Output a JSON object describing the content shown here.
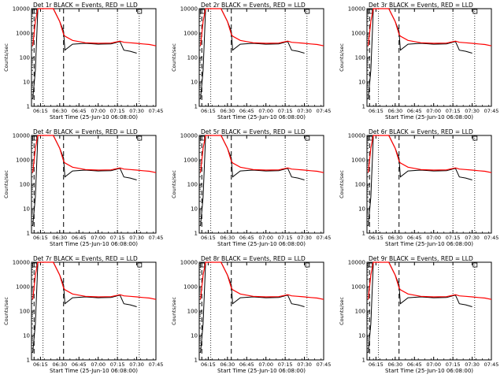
{
  "layout": {
    "rows": 3,
    "cols": 3
  },
  "shared_axes": {
    "ylabel": "Counts/sec",
    "xlabel": "Start Time (25-Jun-10 06:08:00)",
    "y_log_scale": true,
    "ylim": [
      1,
      10000
    ],
    "y_tick_labels": [
      "1",
      "10",
      "100",
      "1000",
      "10000"
    ],
    "xlim_minutes_since_0600": [
      8,
      105
    ],
    "x_tick_labels": [
      "06:15",
      "06:30",
      "06:45",
      "07:00",
      "07:15",
      "07:30",
      "07:45"
    ]
  },
  "colors": {
    "events": "#000000",
    "lld": "#ff0000"
  },
  "chart_data": [
    {
      "type": "line",
      "title": "Det 1r BLACK = Events, RED = LLD",
      "x": [
        "06:09",
        "06:11",
        "06:13",
        "06:16",
        "06:20",
        "06:25",
        "06:30",
        "06:33",
        "06:34",
        "06:40",
        "06:50",
        "07:00",
        "07:10",
        "07:17",
        "07:20",
        "07:25",
        "07:30",
        "07:35",
        "07:40",
        "07:45"
      ],
      "series": [
        {
          "name": "Events",
          "values": [
            2,
            30,
            10000,
            10000,
            10000,
            10000,
            3000,
            1200,
            200,
            350,
            380,
            350,
            360,
            450,
            200,
            180,
            150,
            null,
            null,
            null
          ]
        },
        {
          "name": "LLD",
          "values": [
            300,
            3000,
            10000,
            10000,
            10000,
            10000,
            3000,
            900,
            750,
            500,
            400,
            380,
            390,
            470,
            420,
            400,
            380,
            360,
            340,
            300
          ]
        }
      ],
      "dashed_vline_times": [
        "06:10",
        "06:33"
      ],
      "dotted_vline_times": [
        "06:17",
        "07:15",
        "07:32"
      ]
    },
    {
      "type": "line",
      "title": "Det 2r BLACK = Events, RED = LLD",
      "x": [
        "06:09",
        "06:11",
        "06:13",
        "06:16",
        "06:20",
        "06:25",
        "06:30",
        "06:33",
        "06:34",
        "06:40",
        "06:50",
        "07:00",
        "07:10",
        "07:17",
        "07:20",
        "07:25",
        "07:30",
        "07:35",
        "07:40",
        "07:45"
      ],
      "series": [
        {
          "name": "Events",
          "values": [
            2,
            30,
            10000,
            10000,
            10000,
            10000,
            3000,
            1200,
            200,
            350,
            380,
            350,
            360,
            450,
            200,
            180,
            150,
            null,
            null,
            null
          ]
        },
        {
          "name": "LLD",
          "values": [
            300,
            3000,
            10000,
            10000,
            10000,
            10000,
            3000,
            900,
            750,
            500,
            400,
            380,
            390,
            470,
            420,
            400,
            380,
            360,
            340,
            300
          ]
        }
      ],
      "dashed_vline_times": [
        "06:10",
        "06:33"
      ],
      "dotted_vline_times": [
        "06:17",
        "07:15",
        "07:32"
      ]
    },
    {
      "type": "line",
      "title": "Det 3r BLACK = Events, RED = LLD",
      "x": [
        "06:09",
        "06:11",
        "06:13",
        "06:16",
        "06:20",
        "06:25",
        "06:30",
        "06:33",
        "06:34",
        "06:40",
        "06:50",
        "07:00",
        "07:10",
        "07:17",
        "07:20",
        "07:25",
        "07:30",
        "07:35",
        "07:40",
        "07:45"
      ],
      "series": [
        {
          "name": "Events",
          "values": [
            2,
            30,
            10000,
            10000,
            10000,
            10000,
            3000,
            1200,
            200,
            350,
            380,
            350,
            360,
            450,
            200,
            180,
            150,
            null,
            null,
            null
          ]
        },
        {
          "name": "LLD",
          "values": [
            300,
            3000,
            10000,
            10000,
            10000,
            10000,
            3000,
            900,
            750,
            500,
            400,
            380,
            390,
            470,
            420,
            400,
            380,
            360,
            340,
            300
          ]
        }
      ],
      "dashed_vline_times": [
        "06:10",
        "06:33"
      ],
      "dotted_vline_times": [
        "06:17",
        "07:15",
        "07:32"
      ]
    },
    {
      "type": "line",
      "title": "Det 4r BLACK = Events, RED = LLD",
      "x": [
        "06:09",
        "06:11",
        "06:13",
        "06:16",
        "06:20",
        "06:25",
        "06:30",
        "06:33",
        "06:34",
        "06:40",
        "06:50",
        "07:00",
        "07:10",
        "07:17",
        "07:20",
        "07:25",
        "07:30",
        "07:35",
        "07:40",
        "07:45"
      ],
      "series": [
        {
          "name": "Events",
          "values": [
            2,
            30,
            10000,
            10000,
            10000,
            10000,
            3000,
            1200,
            200,
            350,
            380,
            350,
            360,
            450,
            200,
            180,
            150,
            null,
            null,
            null
          ]
        },
        {
          "name": "LLD",
          "values": [
            300,
            3000,
            10000,
            10000,
            10000,
            10000,
            3000,
            900,
            750,
            500,
            400,
            380,
            390,
            470,
            420,
            400,
            380,
            360,
            340,
            300
          ]
        }
      ],
      "dashed_vline_times": [
        "06:10",
        "06:33"
      ],
      "dotted_vline_times": [
        "06:17",
        "07:15",
        "07:32"
      ]
    },
    {
      "type": "line",
      "title": "Det 5r BLACK = Events, RED = LLD",
      "x": [
        "06:09",
        "06:11",
        "06:13",
        "06:16",
        "06:20",
        "06:25",
        "06:30",
        "06:33",
        "06:34",
        "06:40",
        "06:50",
        "07:00",
        "07:10",
        "07:17",
        "07:20",
        "07:25",
        "07:30",
        "07:35",
        "07:40",
        "07:45"
      ],
      "series": [
        {
          "name": "Events",
          "values": [
            2,
            30,
            10000,
            10000,
            10000,
            10000,
            3000,
            1200,
            200,
            350,
            380,
            350,
            360,
            450,
            200,
            180,
            150,
            null,
            null,
            null
          ]
        },
        {
          "name": "LLD",
          "values": [
            300,
            3000,
            10000,
            10000,
            10000,
            10000,
            3000,
            900,
            750,
            500,
            400,
            380,
            390,
            470,
            420,
            400,
            380,
            360,
            340,
            300
          ]
        }
      ],
      "dashed_vline_times": [
        "06:10",
        "06:33"
      ],
      "dotted_vline_times": [
        "06:17",
        "07:15",
        "07:32"
      ]
    },
    {
      "type": "line",
      "title": "Det 6r BLACK = Events, RED = LLD",
      "x": [
        "06:09",
        "06:11",
        "06:13",
        "06:16",
        "06:20",
        "06:25",
        "06:30",
        "06:33",
        "06:34",
        "06:40",
        "06:50",
        "07:00",
        "07:10",
        "07:17",
        "07:20",
        "07:25",
        "07:30",
        "07:35",
        "07:40",
        "07:45"
      ],
      "series": [
        {
          "name": "Events",
          "values": [
            2,
            30,
            10000,
            10000,
            10000,
            10000,
            3000,
            1200,
            200,
            350,
            380,
            350,
            360,
            450,
            200,
            180,
            150,
            null,
            null,
            null
          ]
        },
        {
          "name": "LLD",
          "values": [
            300,
            3000,
            10000,
            10000,
            10000,
            10000,
            3000,
            900,
            750,
            500,
            400,
            380,
            390,
            470,
            420,
            400,
            380,
            360,
            340,
            300
          ]
        }
      ],
      "dashed_vline_times": [
        "06:10",
        "06:33"
      ],
      "dotted_vline_times": [
        "06:17",
        "07:15",
        "07:32"
      ]
    },
    {
      "type": "line",
      "title": "Det 7r BLACK = Events, RED = LLD",
      "x": [
        "06:09",
        "06:11",
        "06:13",
        "06:16",
        "06:20",
        "06:25",
        "06:30",
        "06:33",
        "06:34",
        "06:40",
        "06:50",
        "07:00",
        "07:10",
        "07:17",
        "07:20",
        "07:25",
        "07:30",
        "07:35",
        "07:40",
        "07:45"
      ],
      "series": [
        {
          "name": "Events",
          "values": [
            2,
            30,
            10000,
            10000,
            10000,
            10000,
            3000,
            1200,
            200,
            350,
            380,
            350,
            360,
            450,
            200,
            180,
            150,
            null,
            null,
            null
          ]
        },
        {
          "name": "LLD",
          "values": [
            300,
            3000,
            10000,
            10000,
            10000,
            10000,
            3000,
            900,
            750,
            500,
            400,
            380,
            390,
            470,
            420,
            400,
            380,
            360,
            340,
            300
          ]
        }
      ],
      "dashed_vline_times": [
        "06:10",
        "06:33"
      ],
      "dotted_vline_times": [
        "06:17",
        "07:15",
        "07:32"
      ]
    },
    {
      "type": "line",
      "title": "Det 8r BLACK = Events, RED = LLD",
      "x": [
        "06:09",
        "06:11",
        "06:13",
        "06:16",
        "06:20",
        "06:25",
        "06:30",
        "06:33",
        "06:34",
        "06:40",
        "06:50",
        "07:00",
        "07:10",
        "07:17",
        "07:20",
        "07:25",
        "07:30",
        "07:35",
        "07:40",
        "07:45"
      ],
      "series": [
        {
          "name": "Events",
          "values": [
            2,
            30,
            10000,
            10000,
            10000,
            10000,
            3000,
            1200,
            200,
            350,
            380,
            350,
            360,
            450,
            200,
            180,
            150,
            null,
            null,
            null
          ]
        },
        {
          "name": "LLD",
          "values": [
            300,
            3000,
            10000,
            10000,
            10000,
            10000,
            3000,
            900,
            750,
            500,
            400,
            380,
            390,
            470,
            420,
            400,
            380,
            360,
            340,
            300
          ]
        }
      ],
      "dashed_vline_times": [
        "06:10",
        "06:33"
      ],
      "dotted_vline_times": [
        "06:17",
        "07:15",
        "07:32"
      ]
    },
    {
      "type": "line",
      "title": "Det 9r BLACK = Events, RED = LLD",
      "x": [
        "06:09",
        "06:11",
        "06:13",
        "06:16",
        "06:20",
        "06:25",
        "06:30",
        "06:33",
        "06:34",
        "06:40",
        "06:50",
        "07:00",
        "07:10",
        "07:17",
        "07:20",
        "07:25",
        "07:30",
        "07:35",
        "07:40",
        "07:45"
      ],
      "series": [
        {
          "name": "Events",
          "values": [
            2,
            30,
            10000,
            10000,
            10000,
            10000,
            3000,
            1200,
            200,
            350,
            380,
            350,
            360,
            450,
            200,
            180,
            150,
            null,
            null,
            null
          ]
        },
        {
          "name": "LLD",
          "values": [
            300,
            3000,
            10000,
            10000,
            10000,
            10000,
            3000,
            900,
            750,
            500,
            400,
            380,
            390,
            470,
            420,
            400,
            380,
            360,
            340,
            300
          ]
        }
      ],
      "dashed_vline_times": [
        "06:10",
        "06:33"
      ],
      "dotted_vline_times": [
        "06:17",
        "07:15",
        "07:32"
      ]
    }
  ]
}
